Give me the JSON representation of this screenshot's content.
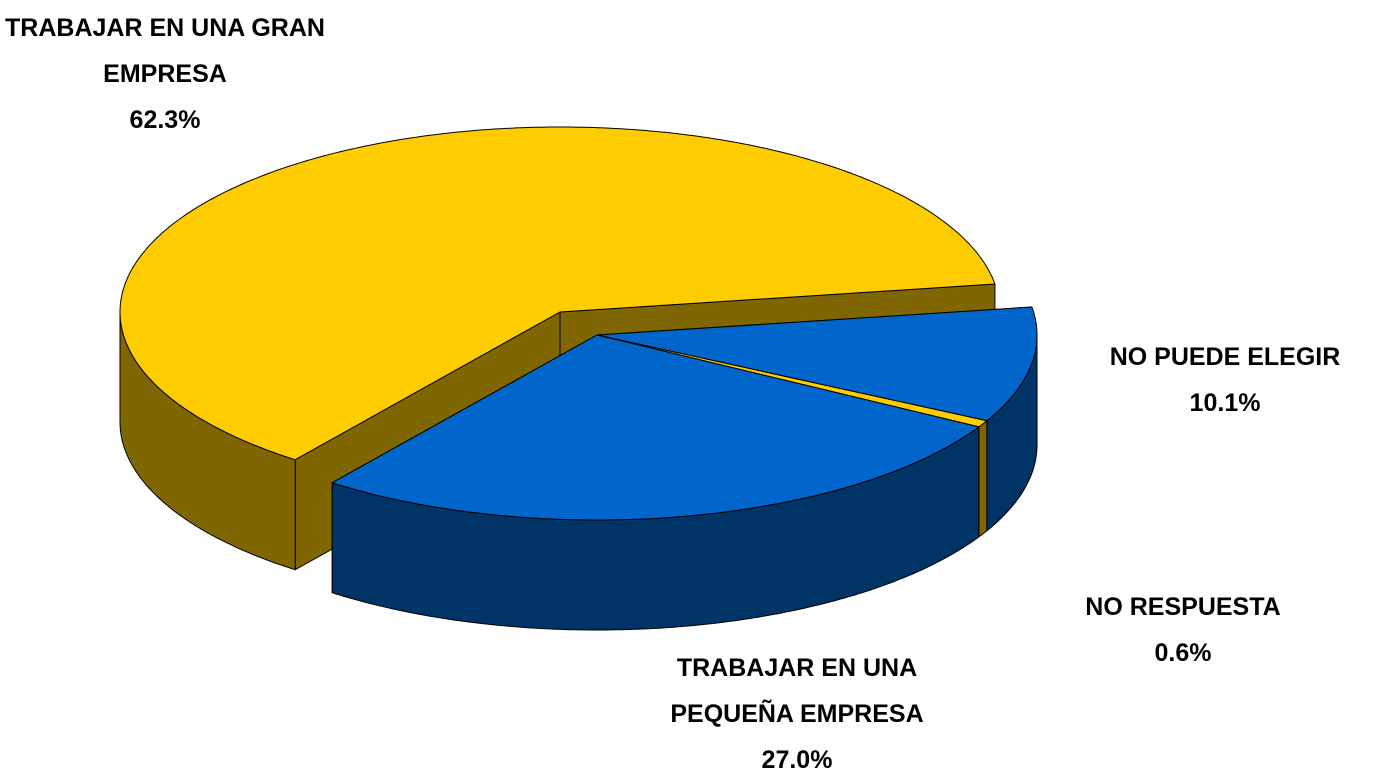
{
  "chart_data": {
    "type": "pie3d",
    "categories": [
      "TRABAJAR EN UNA GRAN EMPRESA",
      "NO PUEDE ELEGIR",
      "NO RESPUESTA",
      "TRABAJAR EN UNA PEQUEÑA EMPRESA"
    ],
    "values": [
      62.3,
      10.1,
      0.6,
      27.0
    ],
    "value_labels": [
      "62.3%",
      "10.1%",
      "0.6%",
      "27.0%"
    ],
    "colors": [
      "#FFCC00",
      "#0066CC",
      "#FFCC00",
      "#0066CC"
    ]
  }
}
